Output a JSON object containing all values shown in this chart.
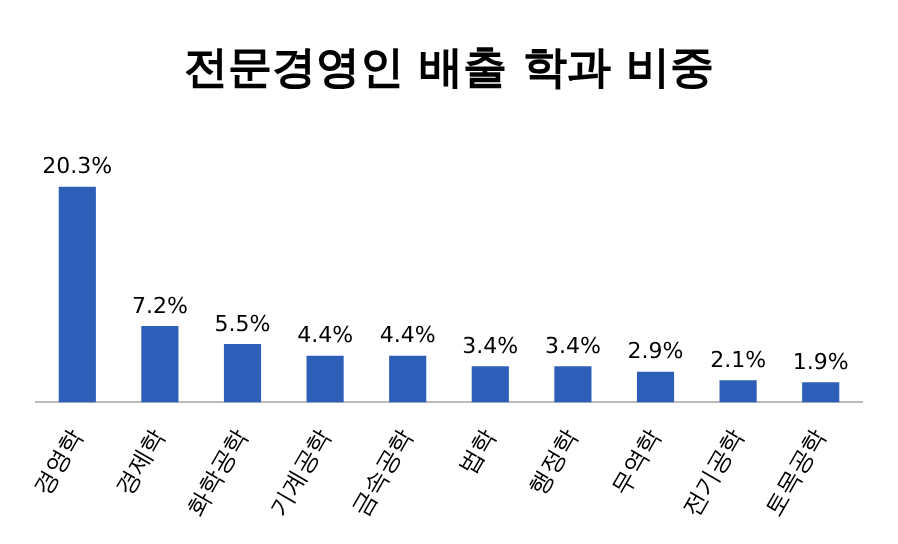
{
  "chart_data": {
    "type": "bar",
    "title": "전문경영인 배출 학과 비중",
    "categories": [
      "경영학",
      "경제학",
      "화학공학",
      "기계공학",
      "금속공학",
      "법학",
      "행정학",
      "무역학",
      "전기공학",
      "토목공학"
    ],
    "values": [
      20.3,
      7.2,
      5.5,
      4.4,
      4.4,
      3.4,
      3.4,
      2.9,
      2.1,
      1.9
    ],
    "value_labels": [
      "20.3%",
      "7.2%",
      "5.5%",
      "4.4%",
      "4.4%",
      "3.4%",
      "3.4%",
      "2.9%",
      "2.1%",
      "1.9%"
    ],
    "color": "#2e5fb8",
    "grid": false,
    "legend": false
  }
}
